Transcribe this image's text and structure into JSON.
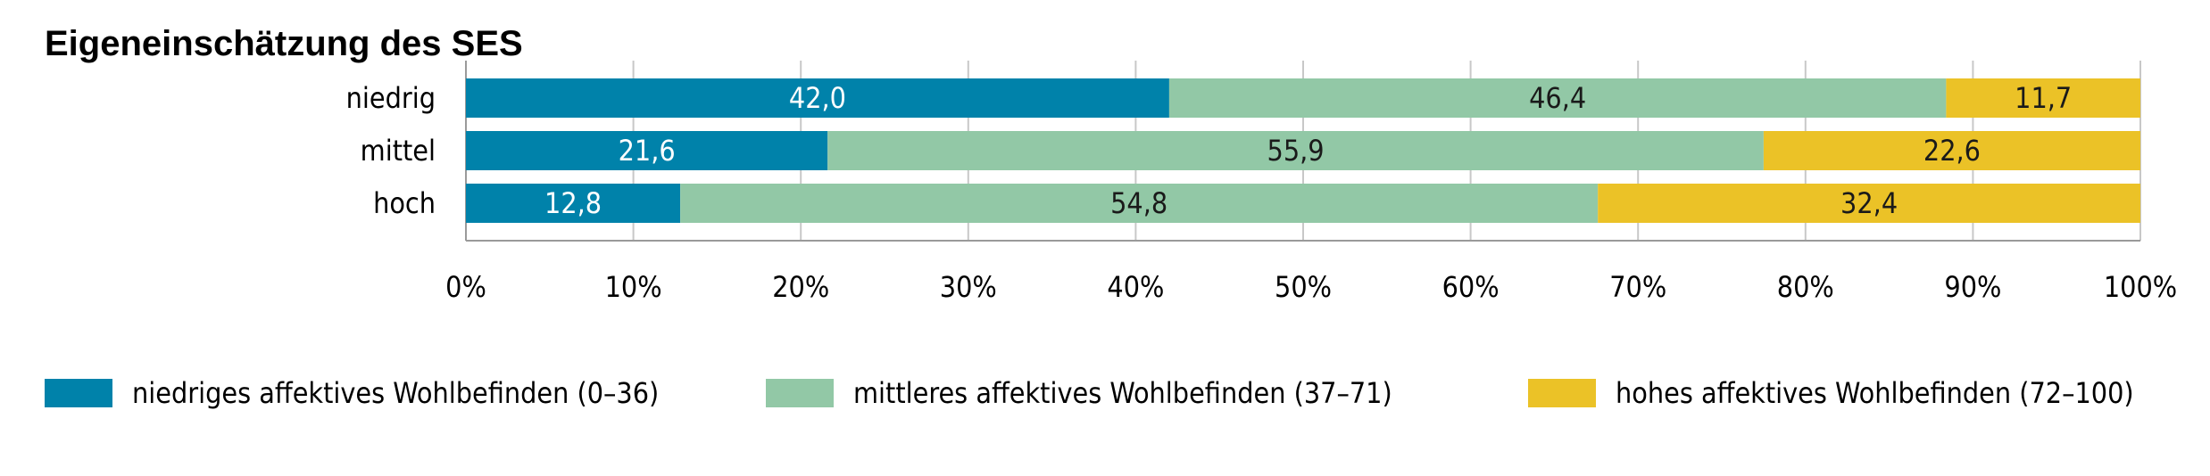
{
  "chart_data": {
    "type": "bar",
    "orientation": "horizontal",
    "stacked": true,
    "title": "Eigeneinschätzung des SES",
    "categories": [
      "niedrig",
      "mittel",
      "hoch"
    ],
    "series": [
      {
        "name": "niedriges affektives Wohlbefinden (0–36)",
        "values": [
          42.0,
          21.6,
          12.8
        ],
        "labels": [
          "42,0",
          "21,6",
          "12,8"
        ],
        "color": "#0082aa",
        "label_color": "#ffffff"
      },
      {
        "name": "mittleres affektives Wohlbefinden (37–71)",
        "values": [
          46.4,
          55.9,
          54.8
        ],
        "labels": [
          "46,4",
          "55,9",
          "54,8"
        ],
        "color": "#92c8a6",
        "label_color": "#1a1a1a"
      },
      {
        "name": "hohes affektives Wohlbefinden (72–100)",
        "values": [
          11.7,
          22.6,
          32.4
        ],
        "labels": [
          "11,7",
          "22,6",
          "32,4"
        ],
        "color": "#ebc227",
        "label_color": "#1a1a1a"
      }
    ],
    "x_ticks": [
      "0%",
      "10%",
      "20%",
      "30%",
      "40%",
      "50%",
      "60%",
      "70%",
      "80%",
      "90%",
      "100%"
    ],
    "xlim": [
      0,
      100
    ],
    "grid": true,
    "legend_position": "bottom"
  }
}
